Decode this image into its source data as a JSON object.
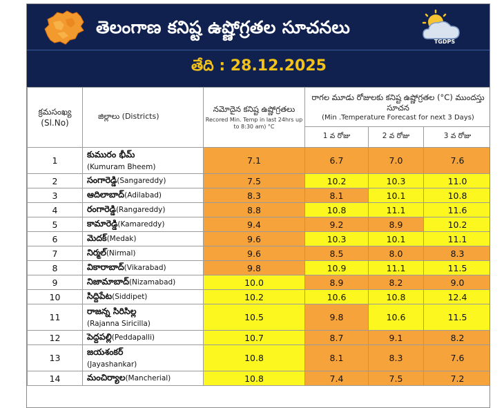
{
  "header": {
    "title": "తెలంగాణ కనిష్ట ఉష్ణోగ్రతల సూచనలు",
    "date_label": "తేది :",
    "date_value": "28.12.2025",
    "logo_text": "TGDPS"
  },
  "table": {
    "col_sl": "క్రమసంఖ్య (Sl.No)",
    "col_district": "జిల్లాలు (Districts)",
    "col_recorded_title": "నమోదైన కనిష్ట ఉష్ణోగ్రతలు",
    "col_recorded_sub": "Recored Min. Temp in last 24hrs up to 8:30 am) °C",
    "col_forecast_title": "రాగల మూడు రోజులకు కనిష్ట ఉష్ణోగ్రతల (°C) ముందస్తు సూచన",
    "col_forecast_sub": "(Min .Temperature Forecast for next 3 Days)",
    "day1": "1 వ రోజు",
    "day2": "2 వ రోజు",
    "day3": "3 వ రోజు",
    "rows": [
      {
        "sl": "1",
        "te": "కుమురం భీమ్",
        "en": "(Kumuram Bheem)",
        "two_line": true,
        "rec": "7.1",
        "d1": "6.7",
        "d2": "7.0",
        "d3": "7.6"
      },
      {
        "sl": "2",
        "te": "సంగారెడ్డి",
        "en": "(Sangareddy)",
        "two_line": false,
        "rec": "7.5",
        "d1": "10.2",
        "d2": "10.3",
        "d3": "11.0"
      },
      {
        "sl": "3",
        "te": "ఆదిలాబాద్",
        "en": "(Adilabad)",
        "two_line": false,
        "rec": "8.3",
        "d1": "8.1",
        "d2": "10.1",
        "d3": "10.8"
      },
      {
        "sl": "4",
        "te": "రంగారెడ్డి",
        "en": "(Rangareddy)",
        "two_line": false,
        "rec": "8.8",
        "d1": "10.8",
        "d2": "11.1",
        "d3": "11.6"
      },
      {
        "sl": "5",
        "te": "కామారెడ్డి",
        "en": "(Kamareddy)",
        "two_line": false,
        "rec": "9.4",
        "d1": "9.2",
        "d2": "8.9",
        "d3": "10.2"
      },
      {
        "sl": "6",
        "te": "మెదక్",
        "en": "(Medak)",
        "two_line": false,
        "rec": "9.6",
        "d1": "10.3",
        "d2": "10.1",
        "d3": "11.1"
      },
      {
        "sl": "7",
        "te": "నిర్మల్",
        "en": "(Nirmal)",
        "two_line": false,
        "rec": "9.6",
        "d1": "8.5",
        "d2": "8.0",
        "d3": "8.3"
      },
      {
        "sl": "8",
        "te": "వికారాబాద్",
        "en": "(Vikarabad)",
        "two_line": false,
        "rec": "9.8",
        "d1": "10.9",
        "d2": "11.1",
        "d3": "11.5"
      },
      {
        "sl": "9",
        "te": "నిజామాబాద్",
        "en": "(Nizamabad)",
        "two_line": false,
        "rec": "10.0",
        "d1": "8.9",
        "d2": "8.2",
        "d3": "9.0"
      },
      {
        "sl": "10",
        "te": "సిద్దిపేట",
        "en": "(Siddipet)",
        "two_line": false,
        "rec": "10.2",
        "d1": "10.6",
        "d2": "10.8",
        "d3": "12.4"
      },
      {
        "sl": "11",
        "te": "రాజన్న సిరిసిల్ల",
        "en": "(Rajanna Siricilla)",
        "two_line": true,
        "rec": "10.5",
        "d1": "9.8",
        "d2": "10.6",
        "d3": "11.5"
      },
      {
        "sl": "12",
        "te": "పెద్దపల్లి",
        "en": "(Peddapalli)",
        "two_line": false,
        "rec": "10.7",
        "d1": "8.7",
        "d2": "9.1",
        "d3": "8.2"
      },
      {
        "sl": "13",
        "te": "జయశంకర్",
        "en": "(Jayashankar)",
        "two_line": true,
        "rec": "10.8",
        "d1": "8.1",
        "d2": "8.3",
        "d3": "7.6"
      },
      {
        "sl": "14",
        "te": "మంచిర్యాల",
        "en": "(Mancherial)",
        "two_line": false,
        "rec": "10.8",
        "d1": "7.4",
        "d2": "7.5",
        "d3": "7.2"
      }
    ]
  },
  "colors": {
    "header_bg": "#11214f",
    "date_color": "#f2c21a",
    "orange": "#f7a33b",
    "yellow": "#fbf71f"
  }
}
